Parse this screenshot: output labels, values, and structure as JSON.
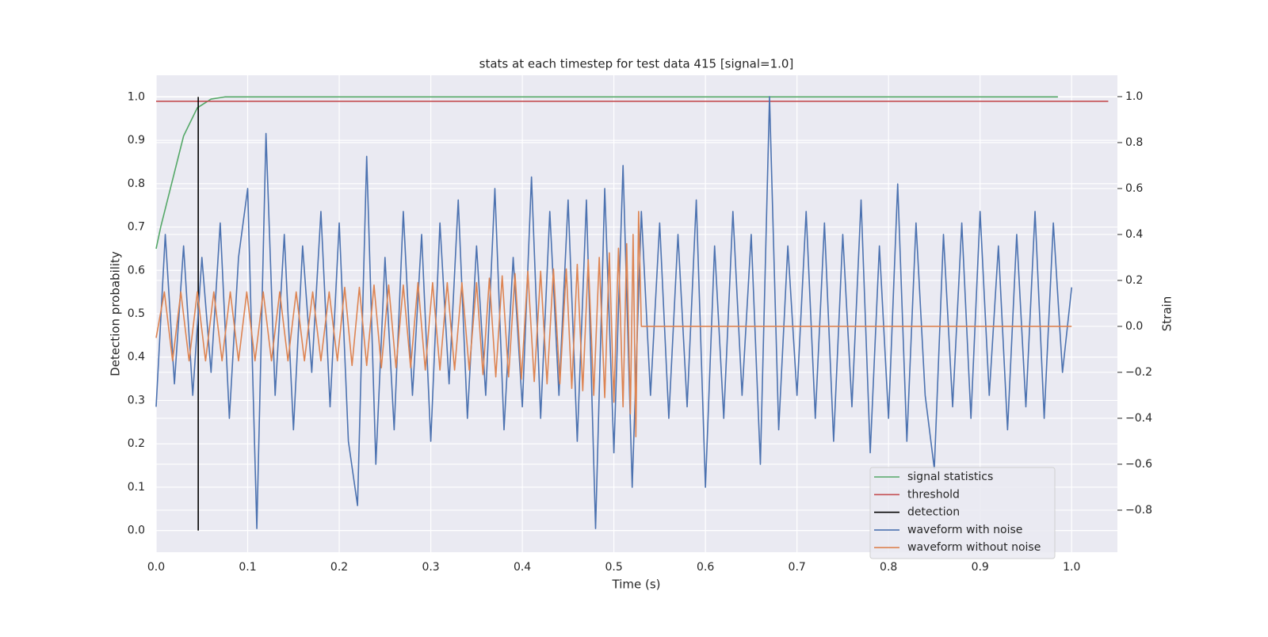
{
  "chart_data": {
    "type": "line",
    "title": "stats at each timestep for test data 415 [signal=1.0]",
    "xlabel": "Time (s)",
    "ylabel": "Detection probability",
    "y2label": "Strain",
    "xlim": [
      0,
      1.05
    ],
    "ylim": [
      -0.05,
      1.05
    ],
    "y2lim": [
      -0.983,
      1.093
    ],
    "xticks": [
      {
        "value": 0,
        "label": "0.0"
      },
      0.1,
      0.2,
      0.3,
      0.4,
      0.5,
      0.6,
      0.7,
      0.8,
      0.9,
      {
        "value": 1,
        "label": "1.0"
      }
    ],
    "yticks": [
      {
        "value": 0,
        "label": "0.0"
      },
      0.1,
      0.2,
      0.3,
      0.4,
      0.5,
      0.6,
      0.7,
      0.8,
      0.9,
      {
        "value": 1,
        "label": "1.0"
      }
    ],
    "y2ticks": [
      {
        "value": -0.8,
        "label": "−0.8"
      },
      {
        "value": -0.6,
        "label": "−0.6"
      },
      {
        "value": -0.4,
        "label": "−0.4"
      },
      {
        "value": -0.2,
        "label": "−0.2"
      },
      {
        "value": 0,
        "label": "0.0"
      },
      0.2,
      0.4,
      0.6,
      0.8,
      {
        "value": 1,
        "label": "1.0"
      }
    ],
    "grid": true,
    "legend": "lower right",
    "series": [
      {
        "name": "signal statistics",
        "color": "#55a868",
        "x": [
          0,
          0.005,
          0.03,
          0.045,
          0.06,
          0.075,
          0.985
        ],
        "values": [
          0.65,
          0.7,
          0.91,
          0.975,
          0.995,
          1.0,
          1.0
        ]
      },
      {
        "name": "threshold",
        "color": "#c44e52",
        "x": [
          0,
          1.04
        ],
        "values": [
          0.99,
          0.99
        ]
      },
      {
        "name": "detection",
        "color": "#000000",
        "x": [
          0.046,
          0.046
        ],
        "values": [
          0,
          1
        ]
      },
      {
        "name": "waveform with noise",
        "color": "#4c72b0",
        "axis": "y2",
        "x": [
          0,
          0.01,
          0.02,
          0.03,
          0.04,
          0.05,
          0.06,
          0.07,
          0.08,
          0.09,
          0.1,
          0.11,
          0.12,
          0.13,
          0.14,
          0.15,
          0.16,
          0.17,
          0.18,
          0.19,
          0.2,
          0.21,
          0.22,
          0.23,
          0.24,
          0.25,
          0.26,
          0.27,
          0.28,
          0.29,
          0.3,
          0.31,
          0.32,
          0.33,
          0.34,
          0.35,
          0.36,
          0.37,
          0.38,
          0.39,
          0.4,
          0.41,
          0.42,
          0.43,
          0.44,
          0.45,
          0.46,
          0.47,
          0.48,
          0.49,
          0.5,
          0.51,
          0.52,
          0.53,
          0.54,
          0.55,
          0.56,
          0.57,
          0.58,
          0.59,
          0.6,
          0.61,
          0.62,
          0.63,
          0.64,
          0.65,
          0.66,
          0.67,
          0.68,
          0.69,
          0.7,
          0.71,
          0.72,
          0.73,
          0.74,
          0.75,
          0.76,
          0.77,
          0.78,
          0.79,
          0.8,
          0.81,
          0.82,
          0.83,
          0.84,
          0.85,
          0.86,
          0.87,
          0.88,
          0.89,
          0.9,
          0.91,
          0.92,
          0.93,
          0.94,
          0.95,
          0.96,
          0.97,
          0.98,
          0.99,
          1.0
        ],
        "values": [
          -0.35,
          0.4,
          -0.25,
          0.35,
          -0.3,
          0.3,
          -0.2,
          0.45,
          -0.4,
          0.3,
          0.6,
          -0.88,
          0.84,
          -0.3,
          0.4,
          -0.45,
          0.35,
          -0.2,
          0.5,
          -0.35,
          0.45,
          -0.5,
          -0.78,
          0.74,
          -0.6,
          0.3,
          -0.45,
          0.5,
          -0.3,
          0.4,
          -0.5,
          0.45,
          -0.25,
          0.55,
          -0.4,
          0.35,
          -0.3,
          0.6,
          -0.45,
          0.3,
          -0.35,
          0.65,
          -0.4,
          0.5,
          -0.3,
          0.55,
          -0.5,
          0.55,
          -0.88,
          0.6,
          -0.55,
          0.7,
          -0.7,
          0.5,
          -0.3,
          0.45,
          -0.4,
          0.4,
          -0.35,
          0.55,
          -0.7,
          0.35,
          -0.4,
          0.5,
          -0.3,
          0.4,
          -0.6,
          1.0,
          -0.45,
          0.35,
          -0.3,
          0.5,
          -0.4,
          0.45,
          -0.5,
          0.4,
          -0.35,
          0.55,
          -0.55,
          0.35,
          -0.4,
          0.62,
          -0.5,
          0.45,
          -0.3,
          -0.62,
          0.4,
          -0.35,
          0.45,
          -0.4,
          0.5,
          -0.3,
          0.35,
          -0.45,
          0.4,
          -0.35,
          0.5,
          -0.4,
          0.45,
          -0.2,
          0.17
        ]
      },
      {
        "name": "waveform without noise",
        "color": "#dd8452",
        "axis": "y2",
        "x": [
          0,
          0.009,
          0.018,
          0.027,
          0.036,
          0.045,
          0.054,
          0.063,
          0.072,
          0.081,
          0.09,
          0.099,
          0.108,
          0.117,
          0.126,
          0.135,
          0.144,
          0.153,
          0.162,
          0.171,
          0.18,
          0.189,
          0.198,
          0.206,
          0.214,
          0.222,
          0.23,
          0.238,
          0.246,
          0.254,
          0.262,
          0.27,
          0.278,
          0.286,
          0.294,
          0.302,
          0.31,
          0.318,
          0.326,
          0.334,
          0.342,
          0.35,
          0.357,
          0.364,
          0.371,
          0.378,
          0.385,
          0.392,
          0.399,
          0.406,
          0.413,
          0.42,
          0.427,
          0.434,
          0.441,
          0.448,
          0.454,
          0.46,
          0.466,
          0.472,
          0.478,
          0.484,
          0.49,
          0.495,
          0.5,
          0.505,
          0.51,
          0.514,
          0.518,
          0.521,
          0.524,
          0.527,
          0.53,
          1.0
        ],
        "values": [
          -0.05,
          0.15,
          -0.15,
          0.15,
          -0.15,
          0.15,
          -0.15,
          0.15,
          -0.15,
          0.15,
          -0.15,
          0.15,
          -0.15,
          0.15,
          -0.15,
          0.15,
          -0.15,
          0.15,
          -0.15,
          0.15,
          -0.15,
          0.15,
          -0.15,
          0.17,
          -0.17,
          0.17,
          -0.17,
          0.18,
          -0.18,
          0.18,
          -0.18,
          0.18,
          -0.18,
          0.19,
          -0.19,
          0.19,
          -0.19,
          0.19,
          -0.19,
          0.19,
          -0.19,
          0.19,
          -0.21,
          0.21,
          -0.22,
          0.22,
          -0.22,
          0.23,
          -0.23,
          0.24,
          -0.24,
          0.24,
          -0.25,
          0.25,
          -0.25,
          0.25,
          -0.27,
          0.27,
          -0.28,
          0.29,
          -0.3,
          0.3,
          -0.31,
          0.32,
          -0.33,
          0.34,
          -0.35,
          0.36,
          -0.38,
          0.4,
          -0.48,
          0.5,
          0,
          0
        ]
      }
    ]
  }
}
